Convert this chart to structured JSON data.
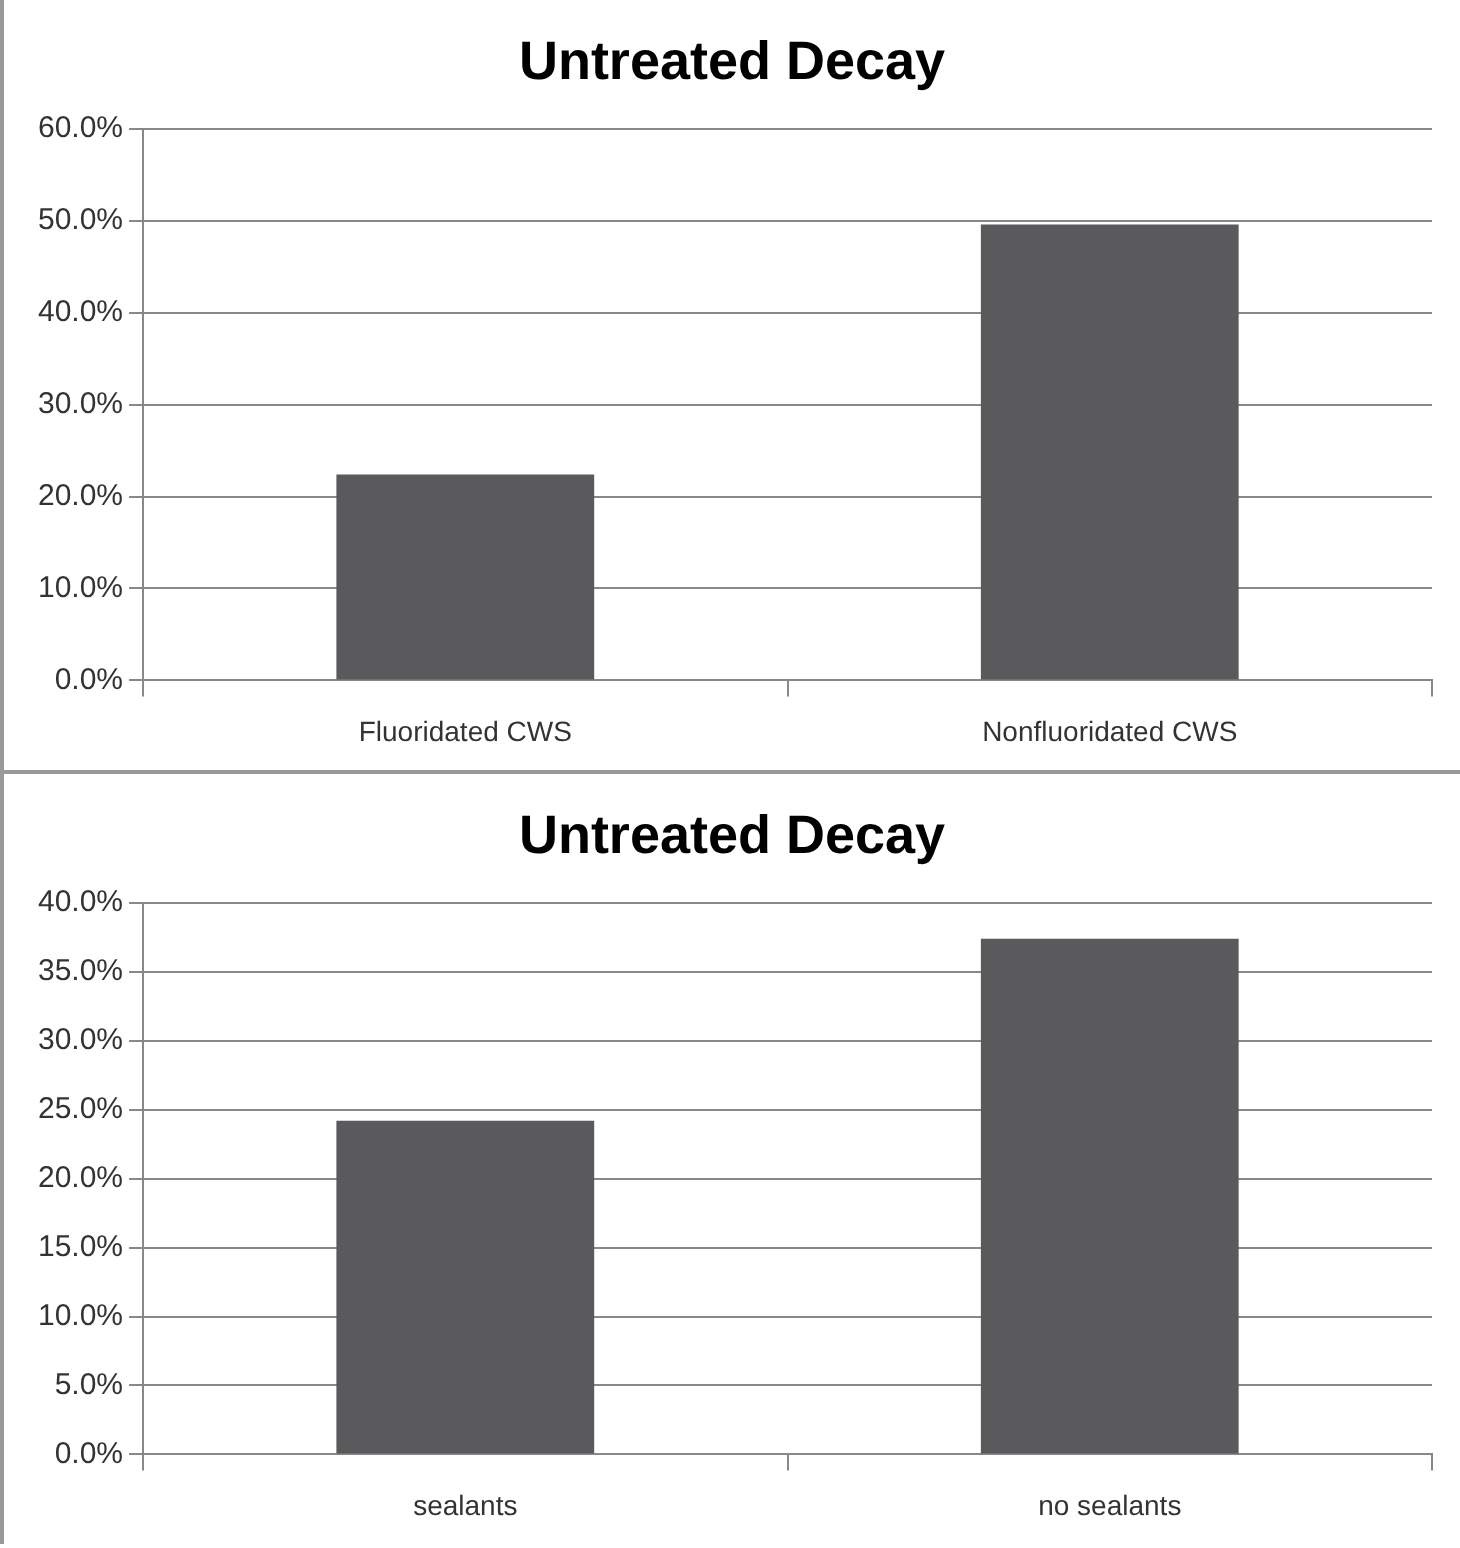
{
  "chart_data": [
    {
      "type": "bar",
      "title": "Untreated Decay",
      "categories": [
        "Fluoridated CWS",
        "Nonfluoridated CWS"
      ],
      "values": [
        22.4,
        49.6
      ],
      "color": "#5a5a5c",
      "ylim": [
        0,
        60
      ],
      "yticks": [
        {
          "value": 0,
          "label": "0.0%"
        },
        {
          "value": 10,
          "label": "10.0%"
        },
        {
          "value": 20,
          "label": "20.0%"
        },
        {
          "value": 30,
          "label": "30.0%"
        },
        {
          "value": 40,
          "label": "40.0%"
        },
        {
          "value": 50,
          "label": "50.0%"
        },
        {
          "value": 60,
          "label": "60.0%"
        }
      ],
      "grid": "y",
      "legend": false
    },
    {
      "type": "bar",
      "title": "Untreated Decay",
      "categories": [
        "sealants",
        "no sealants"
      ],
      "values": [
        24.2,
        37.4
      ],
      "color": "#5a5a5c",
      "ylim": [
        0,
        40
      ],
      "yticks": [
        {
          "value": 0,
          "label": "0.0%"
        },
        {
          "value": 5,
          "label": "5.0%"
        },
        {
          "value": 10,
          "label": "10.0%"
        },
        {
          "value": 15,
          "label": "15.0%"
        },
        {
          "value": 20,
          "label": "20.0%"
        },
        {
          "value": 25,
          "label": "25.0%"
        },
        {
          "value": 30,
          "label": "30.0%"
        },
        {
          "value": 35,
          "label": "35.0%"
        },
        {
          "value": 40,
          "label": "40.0%"
        }
      ],
      "grid": "y",
      "legend": false
    }
  ]
}
